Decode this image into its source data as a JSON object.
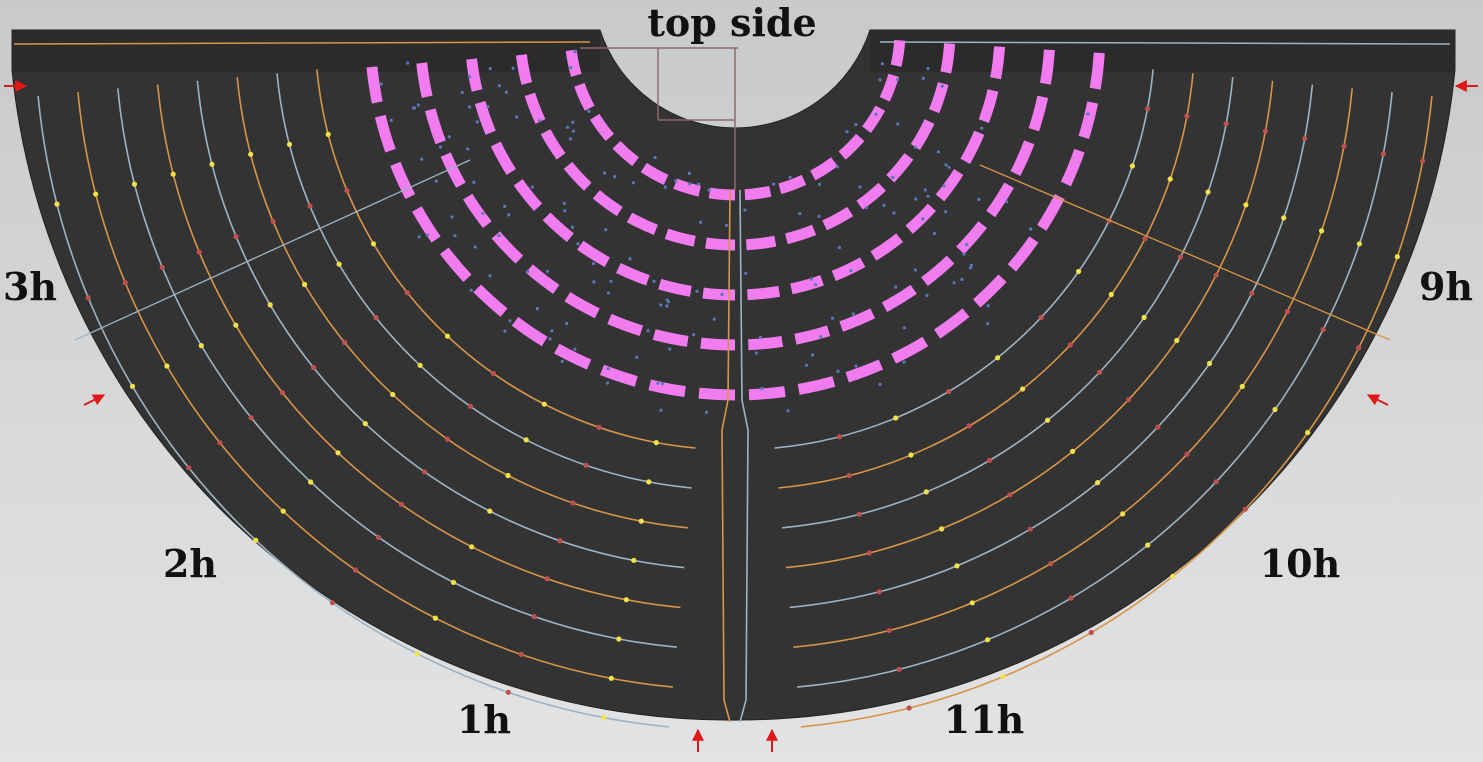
{
  "title": "top side",
  "sectors": {
    "h3": "3h",
    "h2": "2h",
    "h1": "1h",
    "h11": "11h",
    "h10": "10h",
    "h9": "9h"
  },
  "colors": {
    "board": "#333333",
    "trace_orange": "#d99547",
    "trace_blue": "#9fb4c2",
    "pad_magenta": "#f07cf0",
    "component_yellow": "#f2e24a",
    "component_red": "#c05050",
    "arrow_red": "#e01818",
    "label": "#111111"
  },
  "arrows": [
    "inlet-left-top",
    "inlet-left-side",
    "inlet-bottom-left",
    "inlet-bottom-right",
    "inlet-right-side",
    "inlet-right-top"
  ]
}
